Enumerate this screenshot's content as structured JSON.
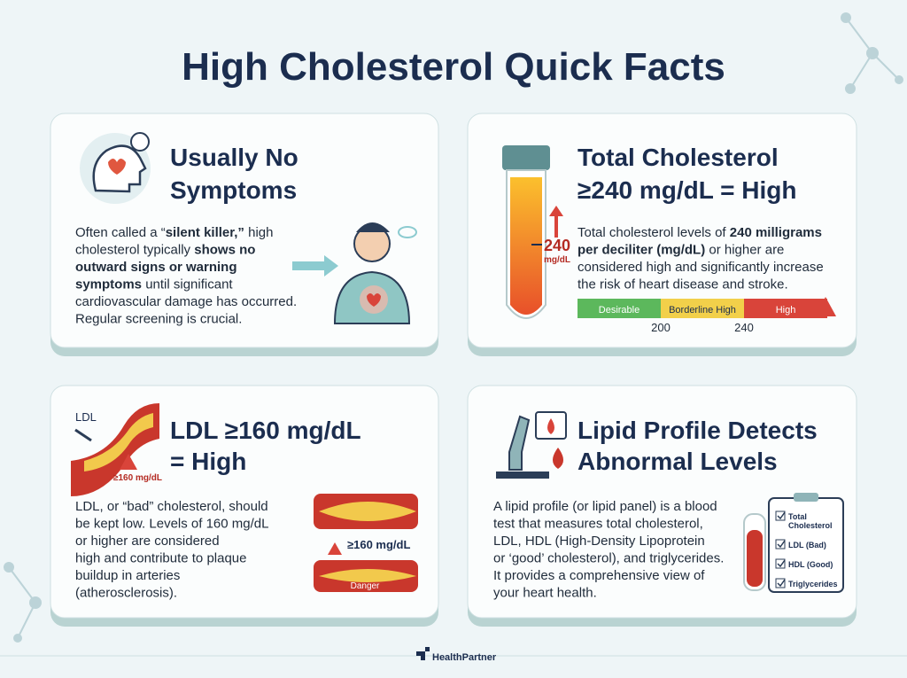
{
  "title": "High Cholesterol Quick Facts",
  "cards": [
    {
      "heading": [
        "Usually No",
        "Symptoms"
      ],
      "body": [
        [
          "Often called a “",
          {
            "text": "silent killer,”",
            "bold": true
          },
          " high"
        ],
        [
          "cholesterol typically ",
          {
            "text": "shows no",
            "bold": true
          }
        ],
        [
          {
            "text": "outward signs or warning",
            "bold": true
          }
        ],
        [
          {
            "text": "symptoms",
            "bold": true
          },
          " until significant"
        ],
        [
          "cardiovascular damage has occurred."
        ],
        [
          "Regular screening is crucial."
        ]
      ]
    },
    {
      "heading": [
        "Total Cholesterol",
        "≥240 mg/dL = High"
      ],
      "body": [
        [
          "Total cholesterol levels of ",
          {
            "text": "240 milligrams",
            "bold": true
          }
        ],
        [
          {
            "text": "per deciliter (mg/dL)",
            "bold": true
          },
          " or higher are"
        ],
        [
          "considered high and significantly increase"
        ],
        [
          "the risk of heart disease and stroke."
        ]
      ],
      "tube_label": [
        "240",
        "mg/dL"
      ],
      "scale": {
        "bands": [
          {
            "name": "Desirable",
            "color": "#5cb85c"
          },
          {
            "name": "Borderline High",
            "color": "#f2d04a"
          },
          {
            "name": "High",
            "color": "#d9443a"
          }
        ],
        "ticks": [
          200,
          240
        ]
      }
    },
    {
      "heading": [
        "LDL ≥160 mg/dL",
        "= High"
      ],
      "body": [
        [
          "LDL, or “bad” cholesterol, should"
        ],
        [
          "be kept low. Levels of 160 mg/dL"
        ],
        [
          "or higher are considered"
        ],
        [
          "high and contribute to plaque"
        ],
        [
          "buildup in arteries"
        ],
        [
          "(atherosclerosis)."
        ]
      ],
      "icon_labels": [
        "LDL",
        "≥160 mg/dL"
      ],
      "artery_labels": [
        "≥160 mg/dL",
        "Danger"
      ]
    },
    {
      "heading": [
        "Lipid Profile Detects",
        "Abnormal Levels"
      ],
      "body": [
        [
          "A lipid profile (or lipid panel) is a blood"
        ],
        [
          "test that measures total cholesterol,"
        ],
        [
          "LDL, HDL (High-Density Lipoprotein"
        ],
        [
          "or ‘good’ cholesterol), and triglycerides."
        ],
        [
          "It provides a comprehensive view of"
        ],
        [
          "your heart health."
        ]
      ],
      "checklist": [
        [
          "Total",
          "Cholesterol"
        ],
        [
          "LDL (Bad)"
        ],
        [
          "HDL (Good)"
        ],
        [
          "Triglycerides"
        ]
      ]
    }
  ],
  "footer": "HealthPartner"
}
